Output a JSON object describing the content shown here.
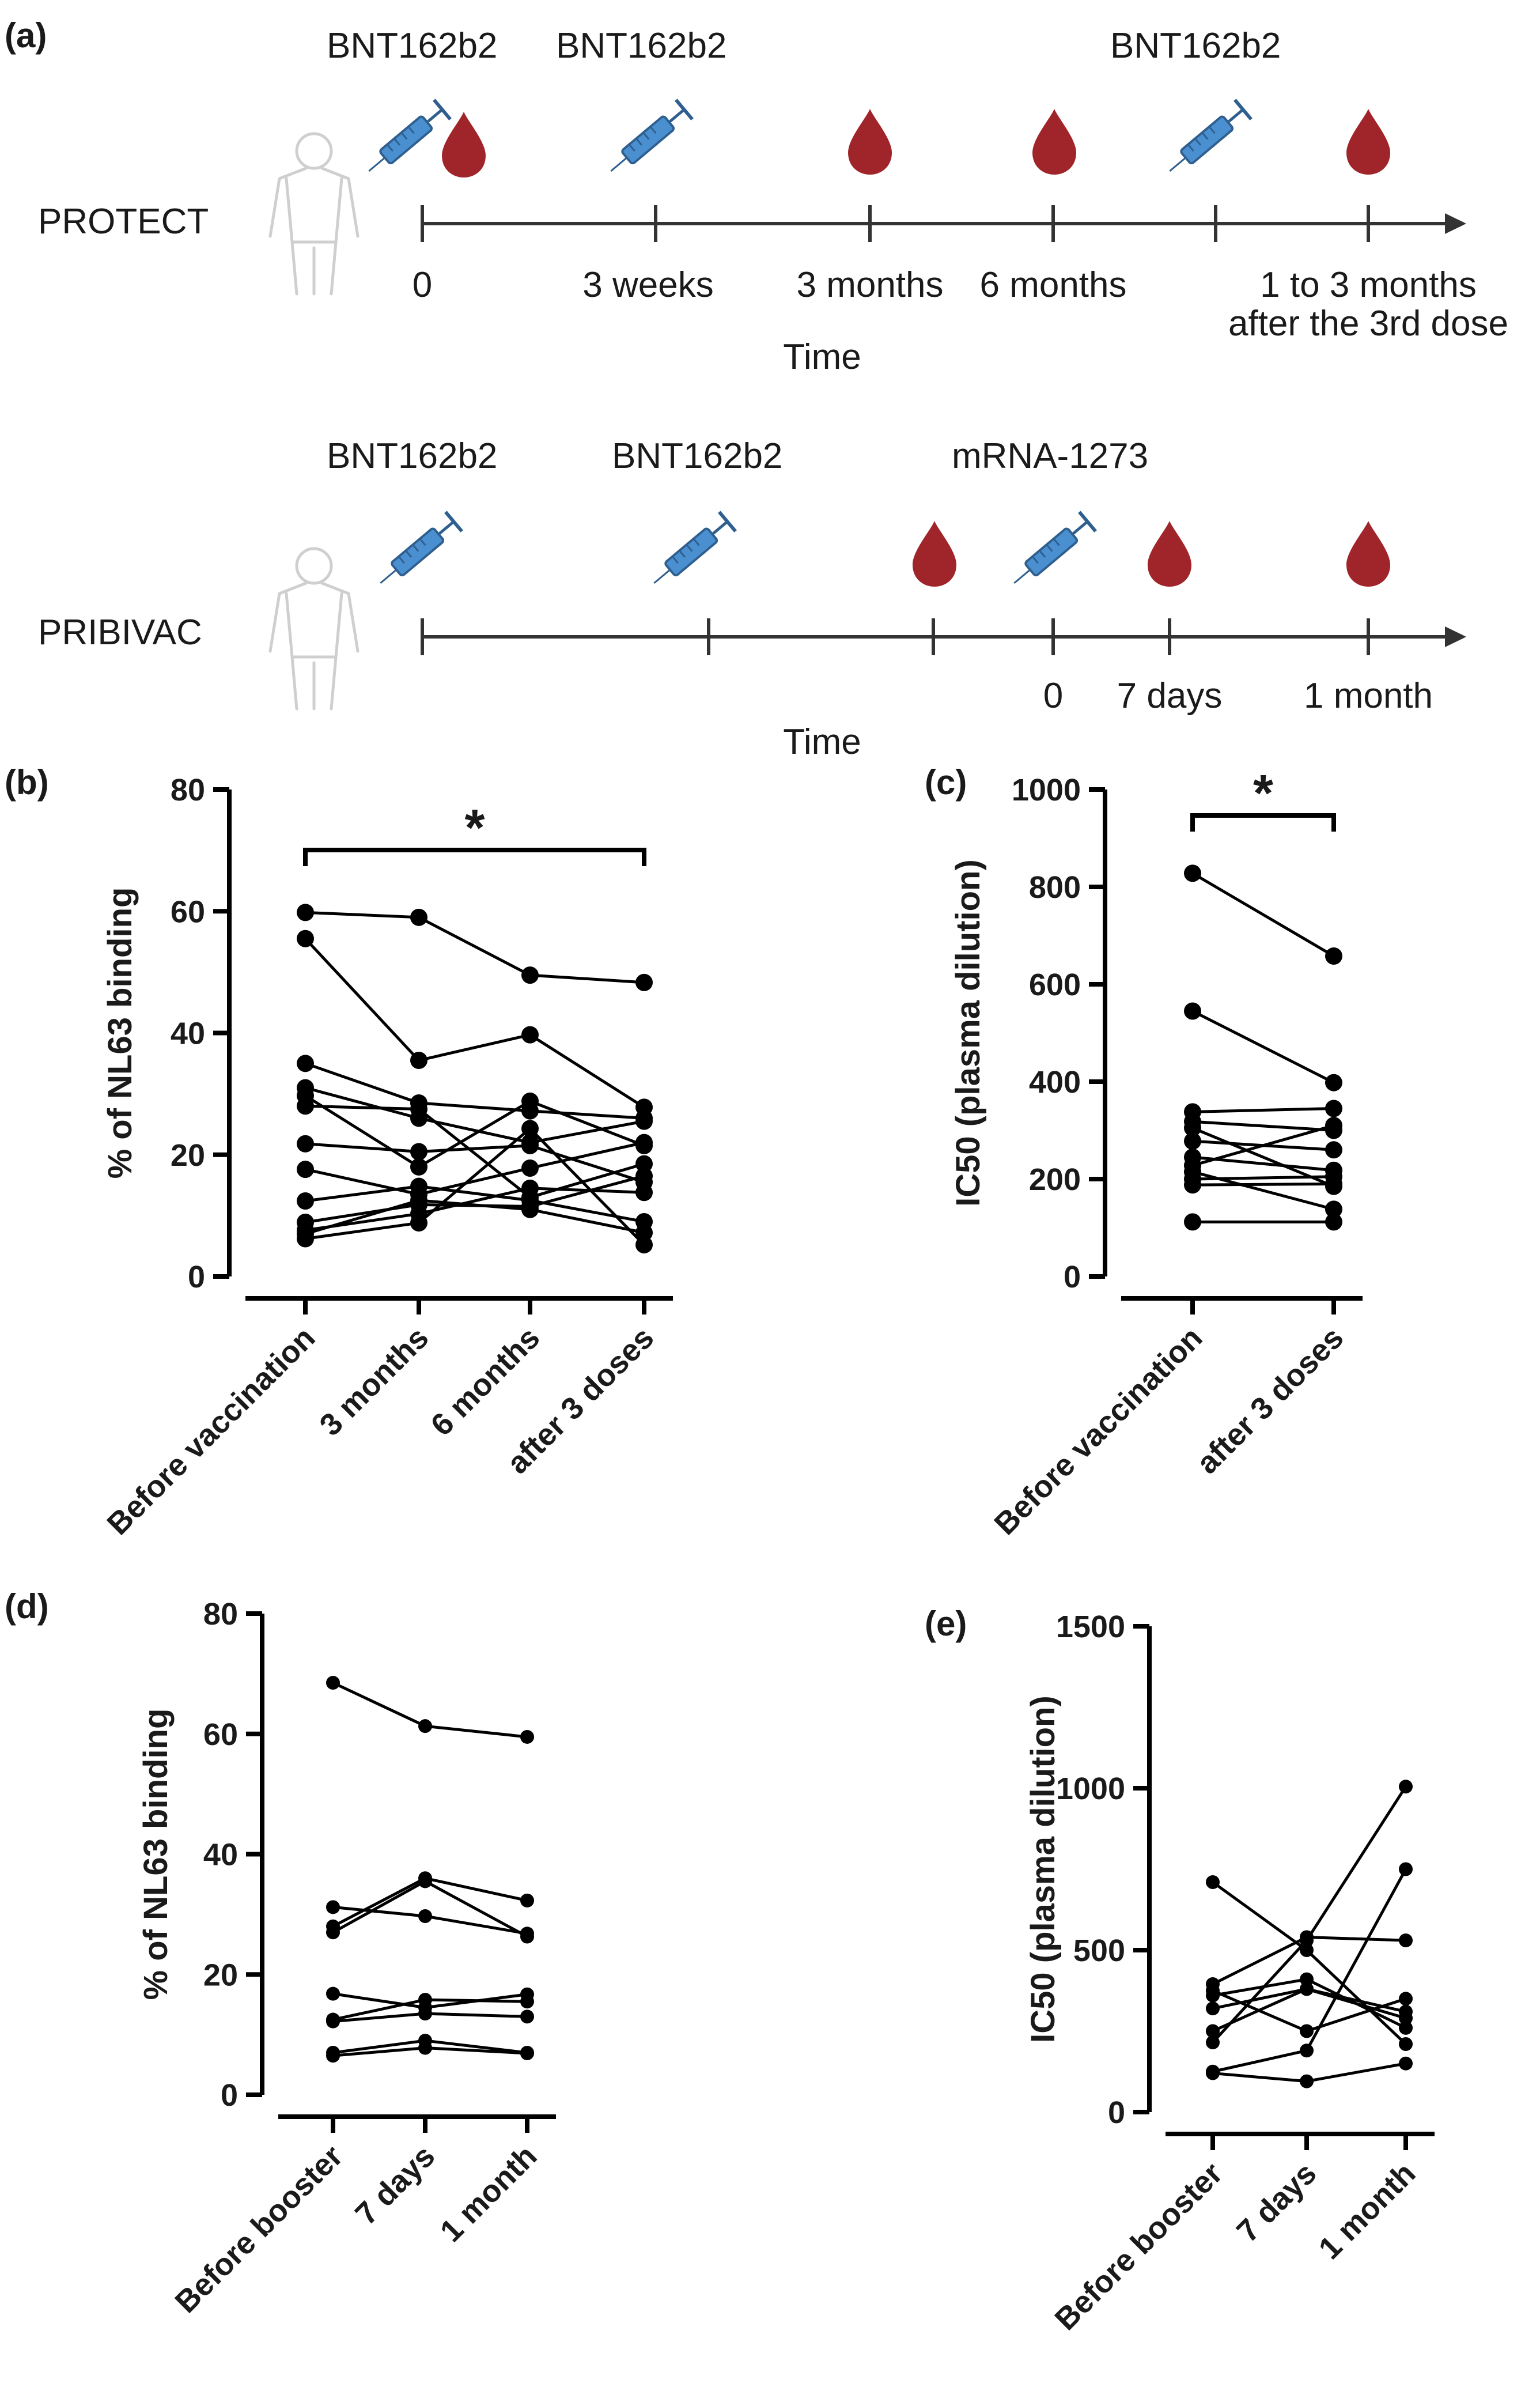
{
  "figure": {
    "colors": {
      "axis": "#000000",
      "blood": "#a0252b",
      "syringe_barrel": "#4a8fcf",
      "syringe_outline": "#2f5f8f",
      "body_outline": "#cfcfcf",
      "text": "#1a1a1a"
    },
    "panel_a": {
      "label": "(a)",
      "protect": {
        "cohort": "PROTECT",
        "vaccines": [
          "BNT162b2",
          "BNT162b2",
          "BNT162b2"
        ],
        "time_labels": [
          "0",
          "3 weeks",
          "3 months",
          "6 months",
          "1 to 3 months",
          "after the 3rd dose"
        ],
        "axis_title": "Time",
        "icons": [
          "person-icon",
          "syringe-icon",
          "blood-drop-icon"
        ]
      },
      "pribivac": {
        "cohort": "PRIBIVAC",
        "vaccines": [
          "BNT162b2",
          "BNT162b2",
          "mRNA-1273"
        ],
        "time_labels": [
          "0",
          "7 days",
          "1 month"
        ],
        "axis_title": "Time",
        "icons": [
          "person-icon",
          "syringe-icon",
          "blood-drop-icon"
        ]
      }
    }
  },
  "chart_data": [
    {
      "panel": "(b)",
      "type": "line",
      "ylabel": "% of NL63 binding",
      "ylim": [
        0,
        80
      ],
      "yticks": [
        "0",
        "20",
        "40",
        "60",
        "80"
      ],
      "categories": [
        "Before vaccination",
        "3 months",
        "6 months",
        "after 3 doses"
      ],
      "significance": {
        "from": 0,
        "to": 3,
        "label": "*"
      },
      "series": [
        {
          "name": "s1",
          "values": [
            59.8,
            59.0,
            49.5,
            48.3
          ]
        },
        {
          "name": "s2",
          "values": [
            55.5,
            35.5,
            39.7,
            27.8
          ]
        },
        {
          "name": "s3",
          "values": [
            35.0,
            28.5,
            27.2,
            26.0
          ]
        },
        {
          "name": "s4",
          "values": [
            31.0,
            26.0,
            22.0,
            25.5
          ]
        },
        {
          "name": "s5",
          "values": [
            29.7,
            18.0,
            28.8,
            21.5
          ]
        },
        {
          "name": "s6",
          "values": [
            28.0,
            27.5,
            13.0,
            18.5
          ]
        },
        {
          "name": "s7",
          "values": [
            21.8,
            20.5,
            21.5,
            15.5
          ]
        },
        {
          "name": "s8",
          "values": [
            17.6,
            13.5,
            17.8,
            22.0
          ]
        },
        {
          "name": "s9",
          "values": [
            12.4,
            14.8,
            12.5,
            9.0
          ]
        },
        {
          "name": "s10",
          "values": [
            8.9,
            11.8,
            11.5,
            16.5
          ]
        },
        {
          "name": "s11",
          "values": [
            7.6,
            10.3,
            14.5,
            13.8
          ]
        },
        {
          "name": "s12",
          "values": [
            7.0,
            12.5,
            11.0,
            7.2
          ]
        },
        {
          "name": "s13",
          "values": [
            6.2,
            8.8,
            24.3,
            5.2
          ]
        }
      ]
    },
    {
      "panel": "(c)",
      "type": "line",
      "ylabel": "IC50 (plasma dilution)",
      "ylim": [
        0,
        1000
      ],
      "yticks": [
        "0",
        "200",
        "400",
        "600",
        "800",
        "1000"
      ],
      "categories": [
        "Before vaccination",
        "after 3 doses"
      ],
      "significance": {
        "from": 0,
        "to": 1,
        "label": "*"
      },
      "series": [
        {
          "name": "s1",
          "values": [
            828,
            658
          ]
        },
        {
          "name": "s2",
          "values": [
            545,
            398
          ]
        },
        {
          "name": "s3",
          "values": [
            338,
            345
          ]
        },
        {
          "name": "s4",
          "values": [
            318,
            300
          ]
        },
        {
          "name": "s5",
          "values": [
            305,
            185
          ]
        },
        {
          "name": "s6",
          "values": [
            278,
            260
          ]
        },
        {
          "name": "s7",
          "values": [
            245,
            218
          ]
        },
        {
          "name": "s8",
          "values": [
            228,
            310
          ]
        },
        {
          "name": "s9",
          "values": [
            215,
            138
          ]
        },
        {
          "name": "s10",
          "values": [
            200,
            205
          ]
        },
        {
          "name": "s11",
          "values": [
            188,
            190
          ]
        },
        {
          "name": "s12",
          "values": [
            112,
            112
          ]
        }
      ]
    },
    {
      "panel": "(d)",
      "type": "line",
      "ylabel": "% of NL63 binding",
      "ylim": [
        0,
        80
      ],
      "yticks": [
        "0",
        "20",
        "40",
        "60",
        "80"
      ],
      "categories": [
        "Before booster",
        "7 days",
        "1 month"
      ],
      "series": [
        {
          "name": "s1",
          "values": [
            68.5,
            61.3,
            59.5
          ]
        },
        {
          "name": "s2",
          "values": [
            31.2,
            29.7,
            26.8
          ]
        },
        {
          "name": "s3",
          "values": [
            28.0,
            36.0,
            32.3
          ]
        },
        {
          "name": "s4",
          "values": [
            27.0,
            35.5,
            26.3
          ]
        },
        {
          "name": "s5",
          "values": [
            16.8,
            14.5,
            16.7
          ]
        },
        {
          "name": "s6",
          "values": [
            12.5,
            15.8,
            15.5
          ]
        },
        {
          "name": "s7",
          "values": [
            12.2,
            13.5,
            13.0
          ]
        },
        {
          "name": "s8",
          "values": [
            7.0,
            9.0,
            7.0
          ]
        },
        {
          "name": "s9",
          "values": [
            6.5,
            7.8,
            6.9
          ]
        }
      ]
    },
    {
      "panel": "(e)",
      "type": "line",
      "ylabel": "IC50 (plasma dilution)",
      "ylim": [
        0,
        1500
      ],
      "yticks": [
        "0",
        "500",
        "1000",
        "1500"
      ],
      "categories": [
        "Before booster",
        "7 days",
        "1 month"
      ],
      "series": [
        {
          "name": "s1",
          "values": [
            710,
            500,
            210
          ]
        },
        {
          "name": "s2",
          "values": [
            395,
            540,
            530
          ]
        },
        {
          "name": "s3",
          "values": [
            375,
            250,
            350
          ]
        },
        {
          "name": "s4",
          "values": [
            360,
            410,
            260
          ]
        },
        {
          "name": "s5",
          "values": [
            320,
            380,
            290
          ]
        },
        {
          "name": "s6",
          "values": [
            250,
            380,
            310
          ]
        },
        {
          "name": "s7",
          "values": [
            215,
            530,
            1005
          ]
        },
        {
          "name": "s8",
          "values": [
            125,
            190,
            750
          ]
        },
        {
          "name": "s9",
          "values": [
            120,
            95,
            150
          ]
        }
      ]
    }
  ]
}
